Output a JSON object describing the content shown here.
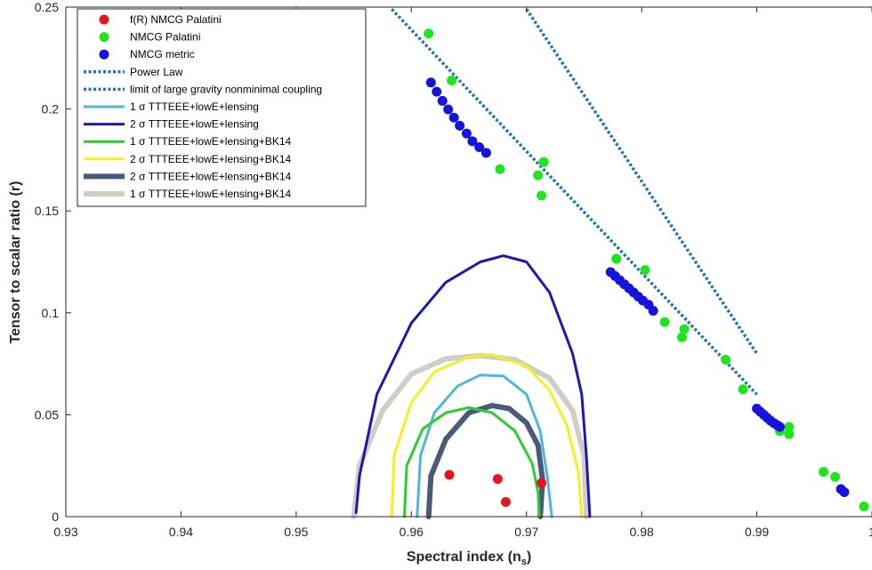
{
  "chart_data": {
    "type": "scatter",
    "xlabel": "Spectral index (n",
    "xlabel_sub": "s",
    "xlabel_close": ")",
    "ylabel": "Tensor to scalar ratio (r)",
    "xlim": [
      0.93,
      1.0
    ],
    "ylim": [
      0,
      0.25
    ],
    "x_ticks": [
      "0.93",
      "0.94",
      "0.95",
      "0.96",
      "0.97",
      "0.98",
      "0.99",
      "1"
    ],
    "y_ticks": [
      "0",
      "0.05",
      "0.1",
      "0.15",
      "0.2",
      "0.25"
    ],
    "grid": false,
    "legend_position": "top-left",
    "series": [
      {
        "name": "f(R) NMCG Palatini",
        "kind": "points",
        "color": "#e8141c",
        "x": [
          0.9633,
          0.9675,
          0.9682,
          0.9713
        ],
        "y": [
          0.0205,
          0.0185,
          0.0072,
          0.0165
        ]
      },
      {
        "name": "NMCG Palatini",
        "kind": "points",
        "color": "#1ee61e",
        "x": [
          0.9615,
          0.9635,
          0.9677,
          0.971,
          0.9713,
          0.9715,
          0.9778,
          0.9803,
          0.982,
          0.9835,
          0.9837,
          0.9873,
          0.9888,
          0.992,
          0.9928,
          0.9928,
          0.9958,
          0.9968,
          0.9993
        ],
        "y": [
          0.237,
          0.214,
          0.1705,
          0.1675,
          0.1575,
          0.174,
          0.1265,
          0.121,
          0.0955,
          0.088,
          0.092,
          0.077,
          0.0625,
          0.042,
          0.044,
          0.0405,
          0.022,
          0.0195,
          0.005
        ]
      },
      {
        "name": "NMCG metric",
        "kind": "points",
        "color": "#1414dc",
        "x": [
          0.9617,
          0.9622,
          0.9627,
          0.9632,
          0.9637,
          0.9642,
          0.9648,
          0.9653,
          0.9659,
          0.9665,
          0.9773,
          0.9777,
          0.9781,
          0.9785,
          0.9789,
          0.9793,
          0.9797,
          0.9801,
          0.9806,
          0.981,
          0.99,
          0.9903,
          0.9906,
          0.9909,
          0.9912,
          0.9915,
          0.9918,
          0.992,
          0.9973,
          0.9976
        ],
        "y": [
          0.213,
          0.2085,
          0.204,
          0.1998,
          0.1958,
          0.1918,
          0.188,
          0.1842,
          0.1813,
          0.1785,
          0.12,
          0.118,
          0.116,
          0.114,
          0.112,
          0.11,
          0.108,
          0.106,
          0.104,
          0.101,
          0.053,
          0.0515,
          0.05,
          0.0485,
          0.047,
          0.0458,
          0.0448,
          0.044,
          0.0135,
          0.012
        ]
      },
      {
        "name": "Power Law",
        "kind": "dotted-line",
        "color": "#1f77b4",
        "x": [
          0.97,
          0.99
        ],
        "y": [
          0.249,
          0.08
        ]
      },
      {
        "name": "limit of large gravity nonminimal coupling",
        "kind": "dotted-line",
        "color": "#1f77b4",
        "x": [
          0.9583,
          0.99
        ],
        "y": [
          0.249,
          0.06
        ]
      },
      {
        "name": "1 σ TTTEEE+lowE+lensing",
        "kind": "contour",
        "color": "#4fb8d8",
        "x": [
          0.9605,
          0.9608,
          0.962,
          0.964,
          0.966,
          0.968,
          0.97,
          0.9712,
          0.9718,
          0.9722
        ],
        "y": [
          0.0,
          0.03,
          0.051,
          0.064,
          0.0695,
          0.069,
          0.06,
          0.042,
          0.02,
          0.0
        ]
      },
      {
        "name": "2 σ TTTEEE+lowE+lensing",
        "kind": "contour",
        "color": "#1a1ab0",
        "x": [
          0.9552,
          0.9555,
          0.957,
          0.96,
          0.963,
          0.966,
          0.968,
          0.97,
          0.972,
          0.974,
          0.9748,
          0.9752,
          0.9755
        ],
        "y": [
          0.002,
          0.02,
          0.06,
          0.095,
          0.115,
          0.125,
          0.128,
          0.125,
          0.11,
          0.08,
          0.06,
          0.03,
          0.0
        ]
      },
      {
        "name": "1 σ TTTEEE+lowE+lensing+BK14",
        "kind": "contour",
        "color": "#2ecc2e",
        "x": [
          0.9594,
          0.9596,
          0.961,
          0.963,
          0.965,
          0.967,
          0.969,
          0.9705,
          0.971,
          0.9711
        ],
        "y": [
          0.0,
          0.025,
          0.043,
          0.051,
          0.0535,
          0.051,
          0.042,
          0.026,
          0.012,
          0.0
        ]
      },
      {
        "name": "2 σ TTTEEE+lowE+lensing+BK14",
        "kind": "contour",
        "color": "#f5f01e",
        "x": [
          0.9583,
          0.9585,
          0.96,
          0.962,
          0.965,
          0.967,
          0.97,
          0.972,
          0.9735,
          0.9745,
          0.9748
        ],
        "y": [
          0.0,
          0.03,
          0.056,
          0.071,
          0.0785,
          0.0795,
          0.074,
          0.062,
          0.045,
          0.022,
          0.0
        ]
      },
      {
        "name": "2 σ TTTEEE+lowE+lensing+BK14",
        "kind": "contour-thick",
        "color": "#4a5a7a",
        "x": [
          0.9615,
          0.9617,
          0.963,
          0.965,
          0.967,
          0.9685,
          0.97,
          0.971,
          0.9714,
          0.9712
        ],
        "y": [
          0.0,
          0.02,
          0.038,
          0.051,
          0.0545,
          0.053,
          0.046,
          0.035,
          0.018,
          0.0
        ]
      },
      {
        "name": "1 σ TTTEEE+lowE+lensing+BK14",
        "kind": "contour-thick",
        "color": "#cfcdc8",
        "x": [
          0.955,
          0.9555,
          0.9575,
          0.96,
          0.963,
          0.966,
          0.969,
          0.972,
          0.974,
          0.975,
          0.9752
        ],
        "y": [
          0.0,
          0.025,
          0.052,
          0.07,
          0.0775,
          0.079,
          0.077,
          0.068,
          0.052,
          0.03,
          0.0
        ]
      }
    ]
  }
}
